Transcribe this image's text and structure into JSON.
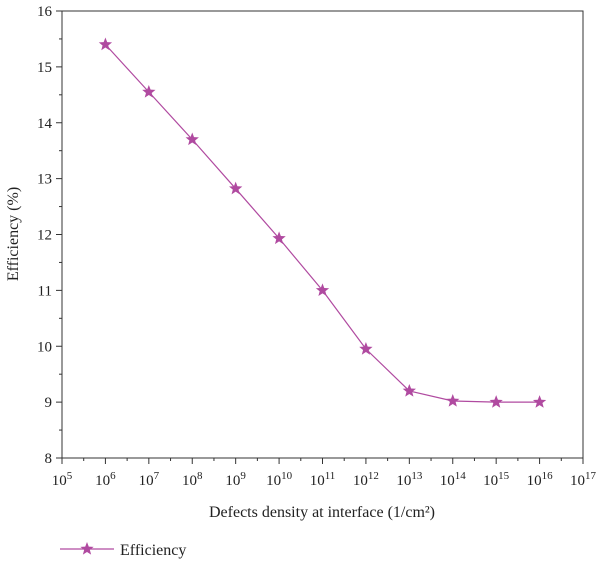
{
  "chart_data": {
    "type": "line",
    "xlabel": "Defects density at interface (1/cm²)",
    "ylabel": "Efficiency (%)",
    "x_scale": "log",
    "xlim": [
      100000.0,
      1e+17
    ],
    "ylim": [
      8,
      16
    ],
    "x_ticks": [
      {
        "base": "10",
        "exp": "5"
      },
      {
        "base": "10",
        "exp": "6"
      },
      {
        "base": "10",
        "exp": "7"
      },
      {
        "base": "10",
        "exp": "8"
      },
      {
        "base": "10",
        "exp": "9"
      },
      {
        "base": "10",
        "exp": "10"
      },
      {
        "base": "10",
        "exp": "11"
      },
      {
        "base": "10",
        "exp": "12"
      },
      {
        "base": "10",
        "exp": "13"
      },
      {
        "base": "10",
        "exp": "14"
      },
      {
        "base": "10",
        "exp": "15"
      },
      {
        "base": "10",
        "exp": "16"
      },
      {
        "base": "10",
        "exp": "17"
      }
    ],
    "y_ticks": [
      "8",
      "9",
      "10",
      "11",
      "12",
      "13",
      "14",
      "15",
      "16"
    ],
    "grid": false,
    "legend_position": "bottom-left",
    "series": [
      {
        "name": "Efficiency",
        "color": "#b04aa0",
        "marker": "star",
        "x": [
          1000000.0,
          10000000.0,
          100000000.0,
          1000000000.0,
          10000000000.0,
          100000000000.0,
          1000000000000.0,
          10000000000000.0,
          100000000000000.0,
          1000000000000000.0,
          1e+16
        ],
        "y": [
          15.4,
          14.55,
          13.7,
          12.82,
          11.93,
          11.0,
          9.95,
          9.2,
          9.02,
          9.0,
          9.0
        ]
      }
    ]
  }
}
